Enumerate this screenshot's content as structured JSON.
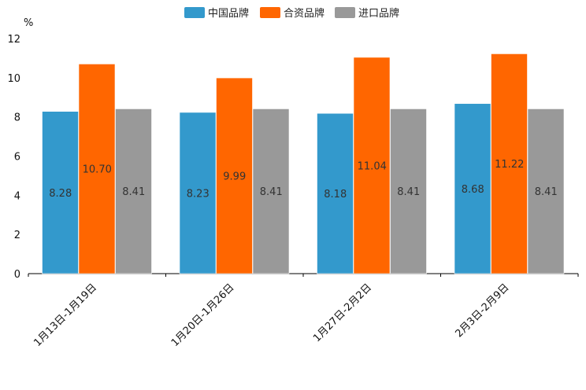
{
  "chart_data": {
    "type": "bar",
    "title": "",
    "ylabel": "%",
    "xlabel": "",
    "ylim": [
      0,
      12
    ],
    "yticks": [
      0,
      2,
      4,
      6,
      8,
      10,
      12
    ],
    "categories": [
      "1月13日-1月19日",
      "1月20日-1月26日",
      "1月27日-2月2日",
      "2月3日-2月9日"
    ],
    "series": [
      {
        "name": "中国品牌",
        "color": "#3399cc",
        "values": [
          8.28,
          8.23,
          8.18,
          8.68
        ],
        "labels": [
          "8.28",
          "8.23",
          "8.18",
          "8.68"
        ]
      },
      {
        "name": "合资品牌",
        "color": "#ff6600",
        "values": [
          10.7,
          9.99,
          11.04,
          11.22
        ],
        "labels": [
          "10.70",
          "9.99",
          "11.04",
          "11.22"
        ]
      },
      {
        "name": "进口品牌",
        "color": "#999999",
        "values": [
          8.41,
          8.41,
          8.41,
          8.41
        ],
        "labels": [
          "8.41",
          "8.41",
          "8.41",
          "8.41"
        ]
      }
    ],
    "legend_position": "top-center",
    "grid": false
  }
}
